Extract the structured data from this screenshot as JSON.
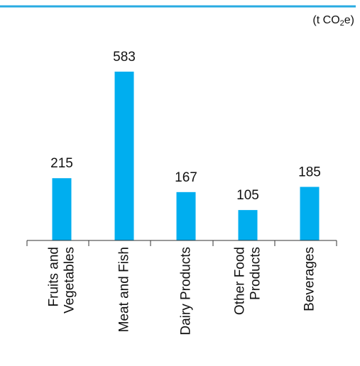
{
  "unit": {
    "prefix": "(t CO",
    "subscript": "2",
    "suffix": "e)"
  },
  "colors": {
    "bar": "#00AEEF",
    "top_rule": "#29ABE2",
    "axis": "#333333",
    "text": "#111111"
  },
  "chart_data": {
    "type": "bar",
    "categories": [
      [
        "Fruits and",
        "Vegetables"
      ],
      [
        "Meat and Fish"
      ],
      [
        "Dairy Products"
      ],
      [
        "Other Food",
        "Products"
      ],
      [
        "Beverages"
      ]
    ],
    "values": [
      215,
      583,
      167,
      105,
      185
    ],
    "data_labels": [
      "215",
      "583",
      "167",
      "105",
      "185"
    ],
    "title": "",
    "xlabel": "",
    "ylabel": "",
    "ylim": [
      0,
      583
    ],
    "grid": false,
    "legend": "none"
  }
}
